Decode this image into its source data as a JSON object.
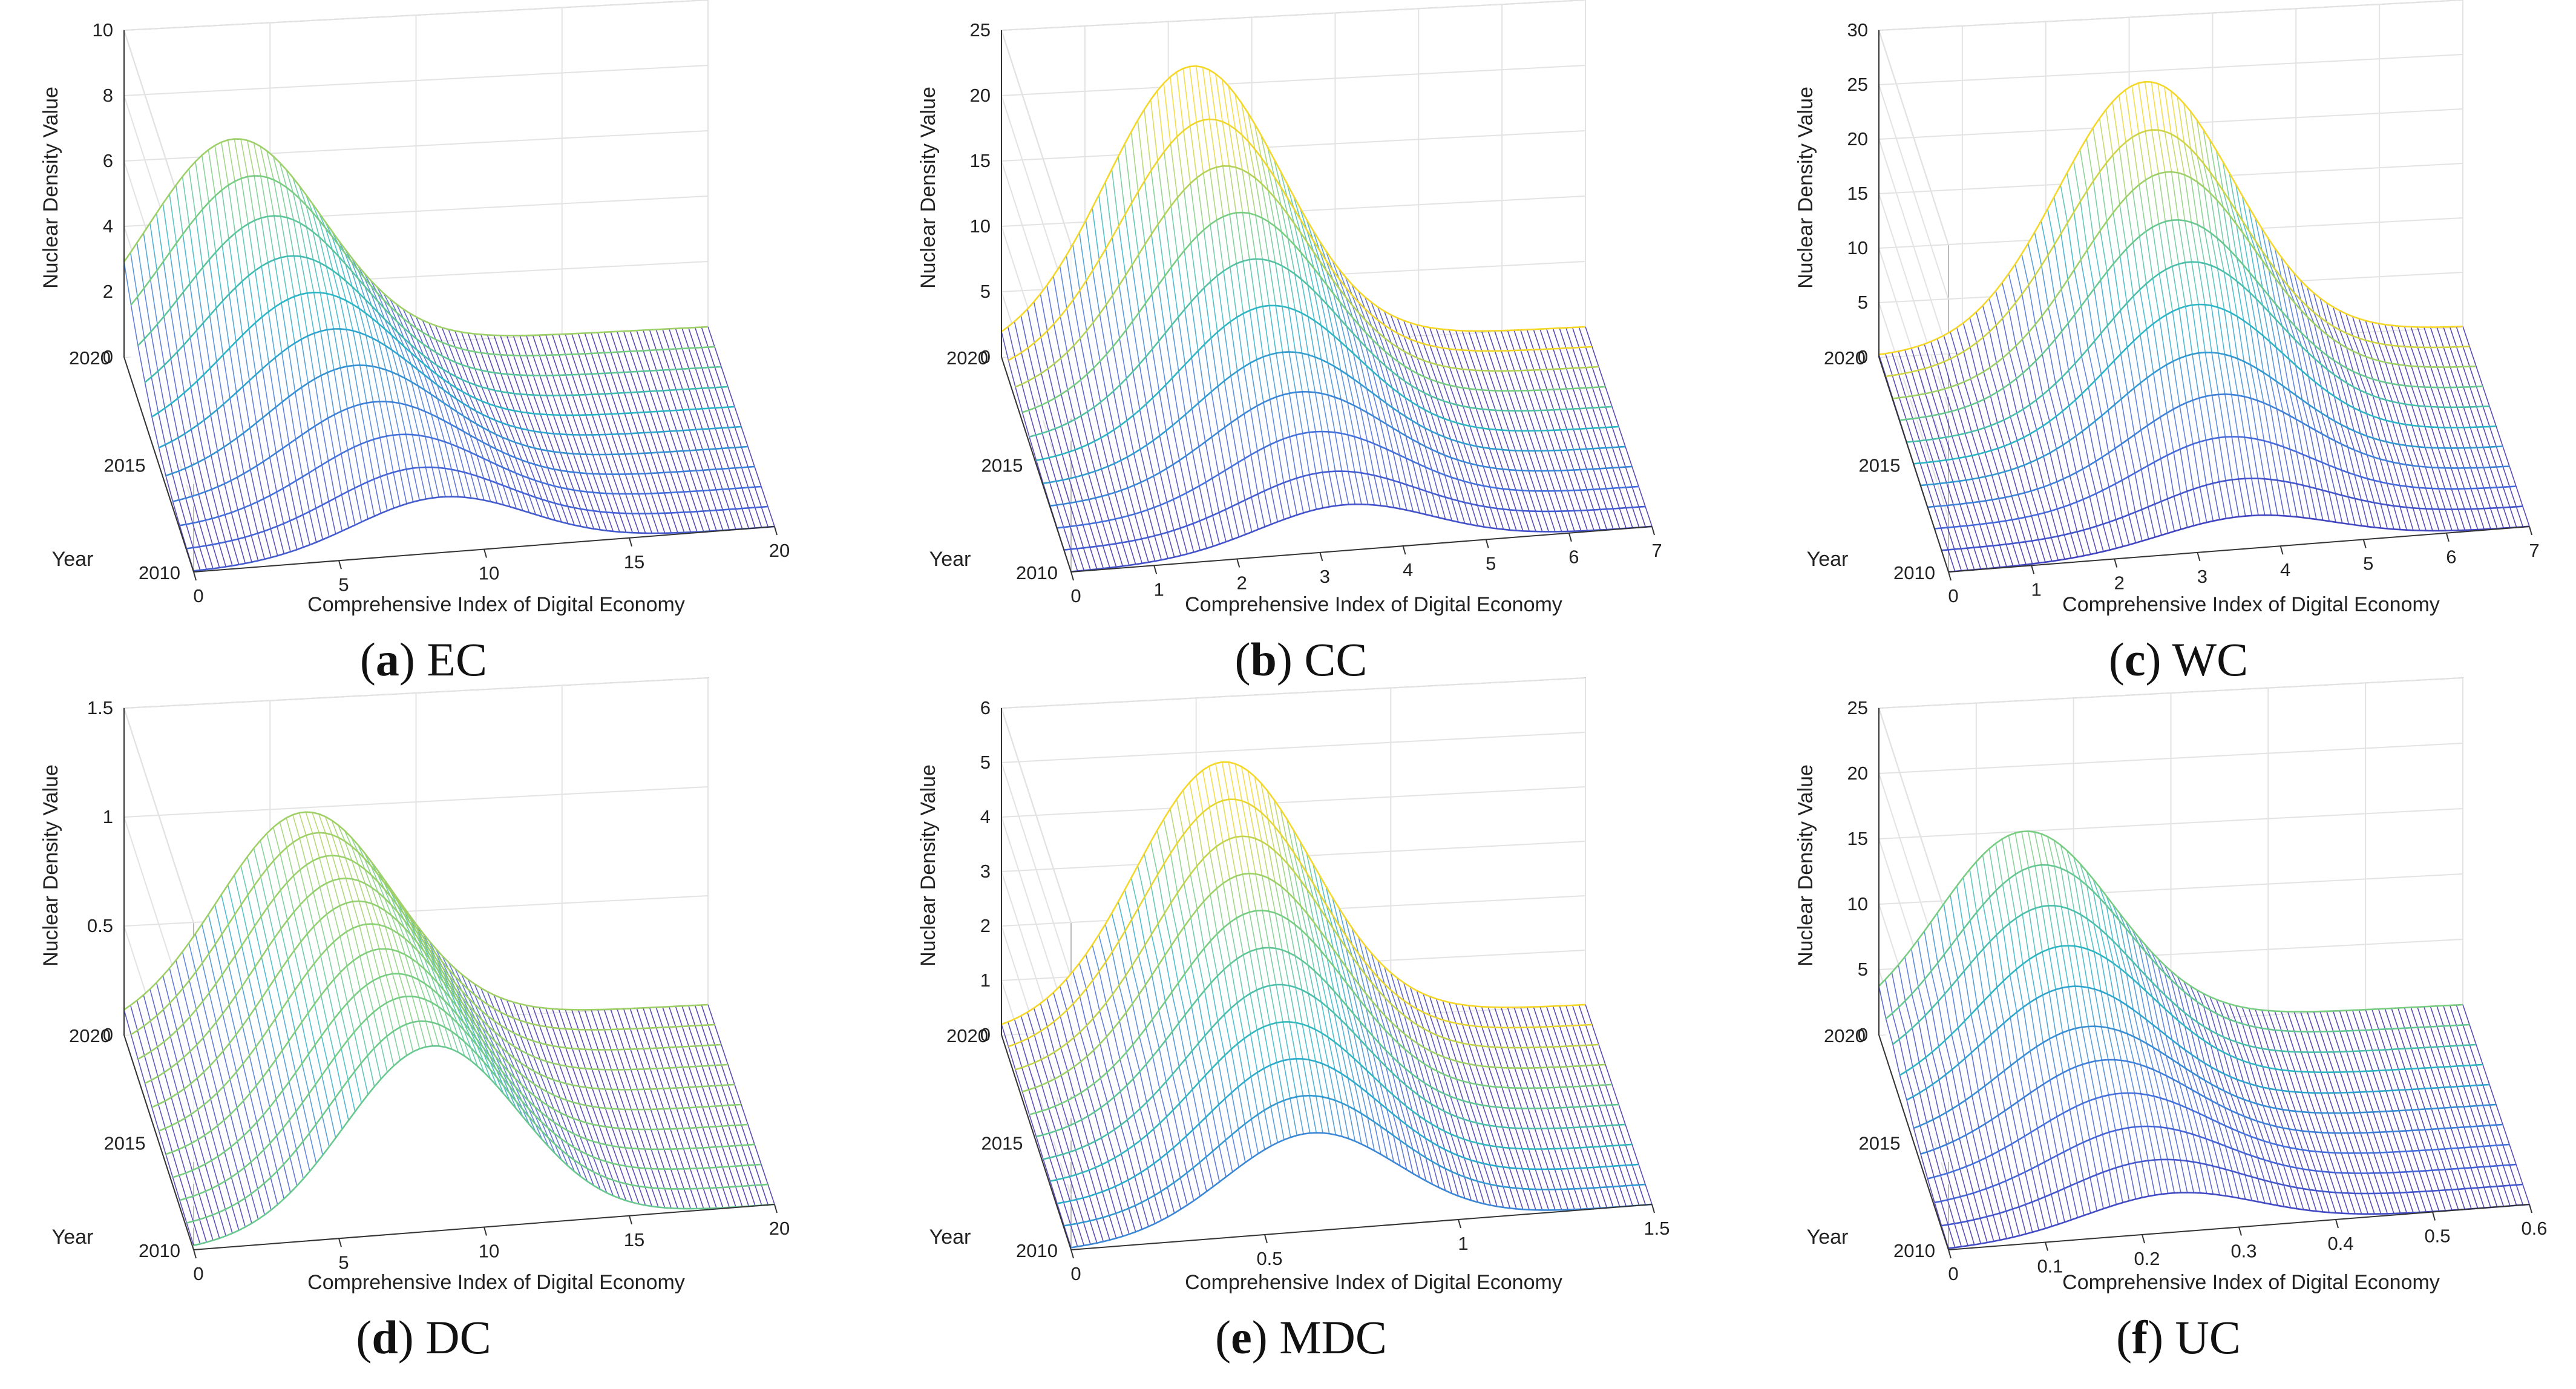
{
  "figure": {
    "ylabel": "Nuclear Density Value",
    "xlabel": "Comprehensive Index of Digital Economy",
    "year_axis_label": "Year"
  },
  "chart_data": [
    {
      "type": "surface",
      "id": "a",
      "caption_letter": "a",
      "caption_text": "EC",
      "title": "(a) EC",
      "xlabel": "Comprehensive Index of Digital Economy",
      "ylabel": "Nuclear Density Value",
      "zlabel": "Year",
      "xlim": [
        0,
        20
      ],
      "xticks": [
        "0",
        "5",
        "10",
        "15",
        "20"
      ],
      "zlim": [
        0,
        10
      ],
      "zticks": [
        "0",
        "2",
        "4",
        "6",
        "8",
        "10"
      ],
      "years": [
        2010,
        2011,
        2012,
        2013,
        2014,
        2015,
        2016,
        2017,
        2018,
        2019,
        2020
      ],
      "year_ticks": [
        "2010",
        "2015",
        "2020"
      ],
      "peak_x": [
        8.5,
        8.0,
        7.5,
        7.0,
        6.5,
        6.0,
        5.5,
        5.0,
        4.6,
        4.2,
        3.8
      ],
      "peak_density": [
        1.7,
        2.0,
        2.4,
        2.8,
        3.3,
        3.8,
        4.3,
        4.8,
        5.4,
        6.0,
        6.5
      ]
    },
    {
      "type": "surface",
      "id": "b",
      "caption_letter": "b",
      "caption_text": "CC",
      "title": "(b) CC",
      "xlabel": "Comprehensive Index of Digital Economy",
      "ylabel": "Nuclear Density Value",
      "zlabel": "Year",
      "xlim": [
        0,
        7
      ],
      "xticks": [
        "0",
        "1",
        "2",
        "3",
        "4",
        "5",
        "6",
        "7"
      ],
      "zlim": [
        0,
        25
      ],
      "zticks": [
        "0",
        "5",
        "10",
        "15",
        "20",
        "25"
      ],
      "years": [
        2010,
        2011,
        2012,
        2013,
        2014,
        2015,
        2016,
        2017,
        2018,
        2019,
        2020
      ],
      "year_ticks": [
        "2010",
        "2015",
        "2020"
      ],
      "peak_x": [
        3.3,
        3.2,
        3.1,
        3.0,
        2.9,
        2.8,
        2.7,
        2.6,
        2.5,
        2.4,
        2.3
      ],
      "peak_density": [
        3.5,
        4.5,
        6.0,
        7.5,
        9.0,
        11.0,
        13.0,
        15.0,
        17.0,
        19.0,
        21.5
      ]
    },
    {
      "type": "surface",
      "id": "c",
      "caption_letter": "c",
      "caption_text": "WC",
      "title": "(c) WC",
      "xlabel": "Comprehensive Index of Digital Economy",
      "ylabel": "Nuclear Density Value",
      "zlabel": "Year",
      "xlim": [
        0,
        7
      ],
      "xticks": [
        "0",
        "1",
        "2",
        "3",
        "4",
        "5",
        "6",
        "7"
      ],
      "zlim": [
        0,
        30
      ],
      "zticks": [
        "0",
        "5",
        "10",
        "15",
        "20",
        "25",
        "30"
      ],
      "years": [
        2010,
        2011,
        2012,
        2013,
        2014,
        2015,
        2016,
        2017,
        2018,
        2019,
        2020
      ],
      "year_ticks": [
        "2010",
        "2015",
        "2020"
      ],
      "peak_x": [
        3.6,
        3.6,
        3.5,
        3.5,
        3.4,
        3.4,
        3.4,
        3.3,
        3.3,
        3.2,
        3.2
      ],
      "peak_density": [
        3.0,
        4.5,
        6.5,
        8.5,
        10.5,
        13.0,
        15.0,
        17.0,
        19.5,
        21.5,
        24.0
      ]
    },
    {
      "type": "surface",
      "id": "d",
      "caption_letter": "d",
      "caption_text": "DC",
      "title": "(d) DC",
      "xlabel": "Comprehensive Index of Digital Economy",
      "ylabel": "Nuclear Density Value",
      "zlabel": "Year",
      "xlim": [
        0,
        20
      ],
      "xticks": [
        "0",
        "5",
        "10",
        "15",
        "20"
      ],
      "zlim": [
        0,
        1.5
      ],
      "zticks": [
        "0",
        "0.5",
        "1",
        "1.5"
      ],
      "years": [
        2010,
        2011,
        2012,
        2013,
        2014,
        2015,
        2016,
        2017,
        2018,
        2019,
        2020
      ],
      "year_ticks": [
        "2010",
        "2015",
        "2020"
      ],
      "peak_x": [
        8.2,
        8.0,
        7.8,
        7.6,
        7.4,
        7.2,
        7.0,
        6.8,
        6.6,
        6.4,
        6.2
      ],
      "peak_density": [
        0.85,
        0.87,
        0.89,
        0.9,
        0.92,
        0.94,
        0.95,
        0.96,
        0.97,
        0.98,
        0.98
      ]
    },
    {
      "type": "surface",
      "id": "e",
      "caption_letter": "e",
      "caption_text": "MDC",
      "title": "(e) MDC",
      "xlabel": "Comprehensive Index of Digital Economy",
      "ylabel": "Nuclear Density Value",
      "zlabel": "Year",
      "xlim": [
        0,
        1.5
      ],
      "xticks": [
        "0",
        "0.5",
        "1",
        "1.5"
      ],
      "zlim": [
        0,
        6
      ],
      "zticks": [
        "0",
        "1",
        "2",
        "3",
        "4",
        "5",
        "6"
      ],
      "years": [
        2010,
        2011,
        2012,
        2013,
        2014,
        2015,
        2016,
        2017,
        2018,
        2019,
        2020
      ],
      "year_ticks": [
        "2010",
        "2015",
        "2020"
      ],
      "peak_x": [
        0.62,
        0.62,
        0.61,
        0.6,
        0.6,
        0.59,
        0.59,
        0.58,
        0.58,
        0.57,
        0.57
      ],
      "peak_density": [
        1.8,
        2.1,
        2.4,
        2.7,
        3.0,
        3.3,
        3.6,
        3.9,
        4.2,
        4.5,
        4.8
      ]
    },
    {
      "type": "surface",
      "id": "f",
      "caption_letter": "f",
      "caption_text": "UC",
      "title": "(f) UC",
      "xlabel": "Comprehensive Index of Digital Economy",
      "ylabel": "Nuclear Density Value",
      "zlabel": "Year",
      "xlim": [
        0,
        0.6
      ],
      "xticks": [
        "0",
        "0.1",
        "0.2",
        "0.3",
        "0.4",
        "0.5",
        "0.6"
      ],
      "zlim": [
        0,
        25
      ],
      "zticks": [
        "0",
        "5",
        "10",
        "15",
        "20",
        "25"
      ],
      "years": [
        2010,
        2011,
        2012,
        2013,
        2014,
        2015,
        2016,
        2017,
        2018,
        2019,
        2020
      ],
      "year_ticks": [
        "2010",
        "2015",
        "2020"
      ],
      "peak_x": [
        0.23,
        0.22,
        0.21,
        0.2,
        0.19,
        0.18,
        0.17,
        0.17,
        0.16,
        0.16,
        0.15
      ],
      "peak_density": [
        3.0,
        4.0,
        5.0,
        6.0,
        7.0,
        8.0,
        9.5,
        11.0,
        12.5,
        14.0,
        15.0
      ]
    }
  ]
}
